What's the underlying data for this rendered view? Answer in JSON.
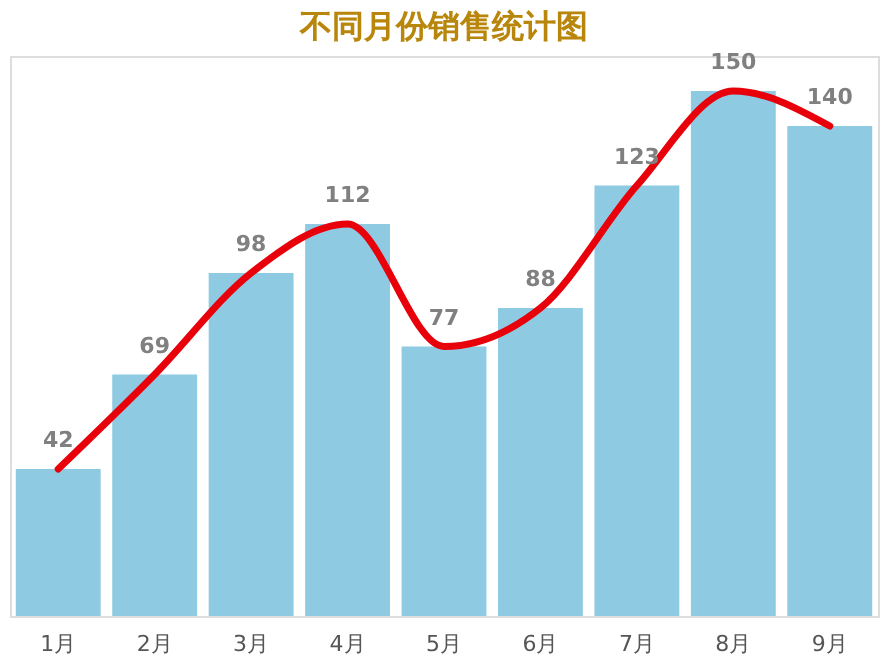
{
  "chart_data": {
    "type": "bar",
    "title": "不同月份销售统计图",
    "categories": [
      "1月",
      "2月",
      "3月",
      "4月",
      "5月",
      "6月",
      "7月",
      "8月",
      "9月"
    ],
    "series": [
      {
        "color": "#8ecae2",
        "values": [
          42,
          69,
          98,
          112,
          77,
          88,
          123,
          150,
          140
        ],
        "value_labels": [
          "42",
          "69",
          "98",
          "112",
          "77",
          "88",
          "123",
          "150",
          "140"
        ]
      },
      {
        "type": "line",
        "color": "#e8000b",
        "values": [
          42,
          69,
          98,
          112,
          77,
          88,
          123,
          150,
          140
        ]
      }
    ],
    "grid": false,
    "legend": false,
    "tick_labels": "x"
  }
}
